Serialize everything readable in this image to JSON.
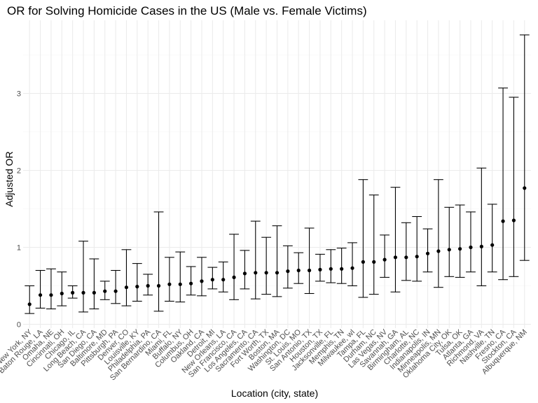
{
  "chart_data": {
    "type": "scatter",
    "title": "OR for Solving Homicide Cases in the US (Male vs. Female Victims)",
    "xlabel": "Location (city, state)",
    "ylabel": "Adjusted OR",
    "ylim": [
      -0.05,
      3.95
    ],
    "yticks": [
      0,
      1,
      2,
      3
    ],
    "grid": true,
    "points": [
      {
        "x": "New York, NY",
        "or": 0.26,
        "lo": 0.14,
        "hi": 0.5
      },
      {
        "x": "Baton Rouge, LA",
        "or": 0.38,
        "lo": 0.21,
        "hi": 0.7
      },
      {
        "x": "Omaha, NE",
        "or": 0.38,
        "lo": 0.2,
        "hi": 0.72
      },
      {
        "x": "Cincinnati, OH",
        "or": 0.4,
        "lo": 0.24,
        "hi": 0.68
      },
      {
        "x": "Chicago, IL",
        "or": 0.41,
        "lo": 0.34,
        "hi": 0.5
      },
      {
        "x": "Long Beach, CA",
        "or": 0.41,
        "lo": 0.16,
        "hi": 1.08
      },
      {
        "x": "San Diego, CA",
        "or": 0.41,
        "lo": 0.2,
        "hi": 0.85
      },
      {
        "x": "Baltimore, MD",
        "or": 0.43,
        "lo": 0.32,
        "hi": 0.56
      },
      {
        "x": "Pittsburgh, PA",
        "or": 0.43,
        "lo": 0.27,
        "hi": 0.7
      },
      {
        "x": "Denver, CO",
        "or": 0.48,
        "lo": 0.24,
        "hi": 0.97
      },
      {
        "x": "Louisville, KY",
        "or": 0.49,
        "lo": 0.3,
        "hi": 0.79
      },
      {
        "x": "Philadelphia, PA",
        "or": 0.5,
        "lo": 0.38,
        "hi": 0.65
      },
      {
        "x": "San Bernardino, CA",
        "or": 0.5,
        "lo": 0.17,
        "hi": 1.46
      },
      {
        "x": "Miami, FL",
        "or": 0.52,
        "lo": 0.3,
        "hi": 0.87
      },
      {
        "x": "Buffalo, NY",
        "or": 0.52,
        "lo": 0.29,
        "hi": 0.94
      },
      {
        "x": "Columbus, OH",
        "or": 0.53,
        "lo": 0.38,
        "hi": 0.75
      },
      {
        "x": "Oakland, CA",
        "or": 0.56,
        "lo": 0.37,
        "hi": 0.87
      },
      {
        "x": "Detroit, MI",
        "or": 0.58,
        "lo": 0.46,
        "hi": 0.74
      },
      {
        "x": "New Orleans, LA",
        "or": 0.58,
        "lo": 0.42,
        "hi": 0.81
      },
      {
        "x": "San Francisco, CA",
        "or": 0.61,
        "lo": 0.32,
        "hi": 1.17
      },
      {
        "x": "Los Angeles, CA",
        "or": 0.66,
        "lo": 0.46,
        "hi": 0.96
      },
      {
        "x": "Sacramento, CA",
        "or": 0.67,
        "lo": 0.33,
        "hi": 1.34
      },
      {
        "x": "Fort Worth, TX",
        "or": 0.67,
        "lo": 0.39,
        "hi": 1.13
      },
      {
        "x": "Boston, MA",
        "or": 0.67,
        "lo": 0.36,
        "hi": 1.28
      },
      {
        "x": "Washington, DC",
        "or": 0.69,
        "lo": 0.47,
        "hi": 1.02
      },
      {
        "x": "St. Louis, MO",
        "or": 0.7,
        "lo": 0.53,
        "hi": 0.93
      },
      {
        "x": "San Antonio, TX",
        "or": 0.7,
        "lo": 0.4,
        "hi": 1.25
      },
      {
        "x": "Houston, TX",
        "or": 0.71,
        "lo": 0.56,
        "hi": 0.91
      },
      {
        "x": "Jacksonville, FL",
        "or": 0.72,
        "lo": 0.54,
        "hi": 0.97
      },
      {
        "x": "Memphis, TN",
        "or": 0.72,
        "lo": 0.53,
        "hi": 0.99
      },
      {
        "x": "Milwaukee, wI",
        "or": 0.73,
        "lo": 0.5,
        "hi": 1.06
      },
      {
        "x": "Tampa, FL",
        "or": 0.81,
        "lo": 0.35,
        "hi": 1.88
      },
      {
        "x": "Durham, NC",
        "or": 0.81,
        "lo": 0.39,
        "hi": 1.68
      },
      {
        "x": "Las Vegas, NV",
        "or": 0.84,
        "lo": 0.61,
        "hi": 1.16
      },
      {
        "x": "Savannah, GA",
        "or": 0.87,
        "lo": 0.42,
        "hi": 1.78
      },
      {
        "x": "Birmingham, AL",
        "or": 0.87,
        "lo": 0.57,
        "hi": 1.32
      },
      {
        "x": "Charlotte, NC",
        "or": 0.88,
        "lo": 0.56,
        "hi": 1.4
      },
      {
        "x": "Indianapolis, IN",
        "or": 0.92,
        "lo": 0.68,
        "hi": 1.24
      },
      {
        "x": "Minneapolis, MN",
        "or": 0.95,
        "lo": 0.48,
        "hi": 1.88
      },
      {
        "x": "Oklahoma City, OK",
        "or": 0.97,
        "lo": 0.62,
        "hi": 1.52
      },
      {
        "x": "Tulsa, OK",
        "or": 0.98,
        "lo": 0.61,
        "hi": 1.55
      },
      {
        "x": "Atlanta, GA",
        "or": 1.0,
        "lo": 0.68,
        "hi": 1.46
      },
      {
        "x": "Richmond, VA",
        "or": 1.01,
        "lo": 0.5,
        "hi": 2.03
      },
      {
        "x": "Nashville, TN",
        "or": 1.03,
        "lo": 0.68,
        "hi": 1.56
      },
      {
        "x": "Fresno, CA",
        "or": 1.34,
        "lo": 0.58,
        "hi": 3.07
      },
      {
        "x": "Stockton, CA",
        "or": 1.35,
        "lo": 0.62,
        "hi": 2.95
      },
      {
        "x": "Albuquerque, NM",
        "or": 1.77,
        "lo": 0.83,
        "hi": 3.76
      }
    ]
  }
}
